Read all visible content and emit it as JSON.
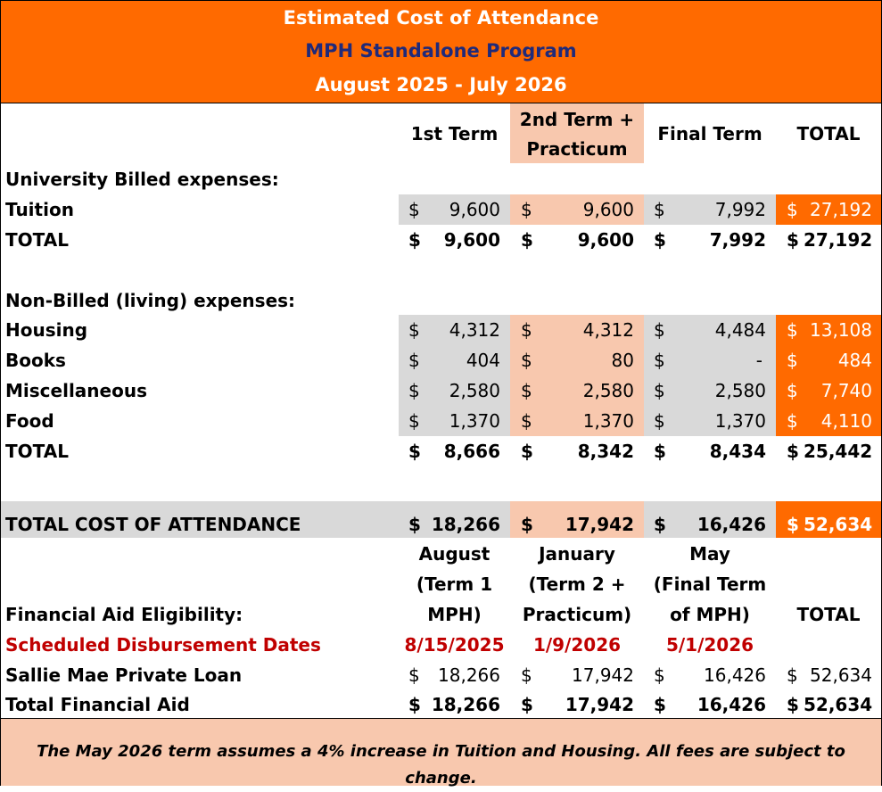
{
  "header": {
    "title": "Estimated Cost of Attendance",
    "program": "MPH Standalone Program",
    "period": "August 2025 - July 2026"
  },
  "columns": {
    "term1": "1st Term",
    "term2_line1": "2nd Term +",
    "term2_line2": "Practicum",
    "final": "Final Term",
    "total": "TOTAL"
  },
  "billed": {
    "heading": "University Billed expenses:",
    "tuition": {
      "label": "Tuition",
      "t1": "9,600",
      "t2": "9,600",
      "t3": "7,992",
      "total": "27,192"
    },
    "total": {
      "label": "TOTAL",
      "t1": "9,600",
      "t2": "9,600",
      "t3": "7,992",
      "total": "27,192"
    }
  },
  "nonbilled": {
    "heading": "Non-Billed (living) expenses:",
    "housing": {
      "label": "Housing",
      "t1": "4,312",
      "t2": "4,312",
      "t3": "4,484",
      "total": "13,108"
    },
    "books": {
      "label": "Books",
      "t1": "404",
      "t2": "80",
      "t3": "-",
      "total": "484"
    },
    "misc": {
      "label": "Miscellaneous",
      "t1": "2,580",
      "t2": "2,580",
      "t3": "2,580",
      "total": "7,740"
    },
    "food": {
      "label": "Food",
      "t1": "1,370",
      "t2": "1,370",
      "t3": "1,370",
      "total": "4,110"
    },
    "total": {
      "label": "TOTAL",
      "t1": "8,666",
      "t2": "8,342",
      "t3": "8,434",
      "total": "25,442"
    }
  },
  "coa": {
    "label": "TOTAL COST OF ATTENDANCE",
    "t1": "18,266",
    "t2": "17,942",
    "t3": "16,426",
    "total": "52,634"
  },
  "aid": {
    "col1": [
      "August",
      "(Term 1",
      "MPH)"
    ],
    "col2": [
      "January",
      "(Term 2 +",
      "Practicum)"
    ],
    "col3": [
      "May",
      "(Final Term",
      "of MPH)"
    ],
    "total": "TOTAL",
    "eligibility_label": "Financial Aid Eligibility:",
    "dates_label": "Scheduled Disbursement Dates",
    "dates": [
      "8/15/2025",
      "1/9/2026",
      "5/1/2026"
    ],
    "loan": {
      "label": "Sallie Mae Private Loan",
      "t1": "18,266",
      "t2": "17,942",
      "t3": "16,426",
      "total": "52,634"
    },
    "total_aid": {
      "label": "Total Financial Aid",
      "t1": "18,266",
      "t2": "17,942",
      "t3": "16,426",
      "total": "52,634"
    }
  },
  "currency": "$",
  "footnote": "The May 2026 term assumes a 4% increase in Tuition and Housing. All fees are subject to change.",
  "colors": {
    "orange": "#FF6A00",
    "peach": "#F8C8AE",
    "grey": "#D9D9D9",
    "navy": "#1F2A7A",
    "red": "#C00000"
  }
}
